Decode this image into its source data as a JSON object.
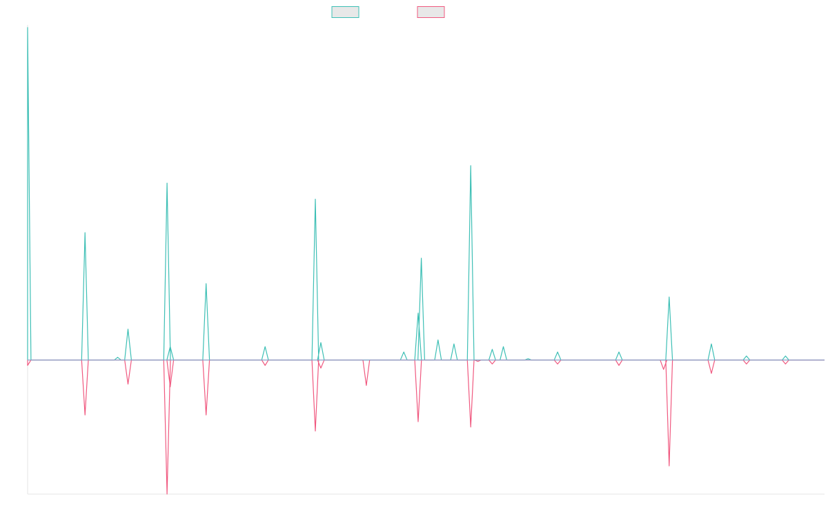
{
  "chart_data": {
    "type": "line",
    "title": "",
    "xlabel": "",
    "ylabel": "",
    "xlim": [
      0,
      100
    ],
    "ylim": [
      -1,
      2.5
    ],
    "grid": false,
    "legend": "top-center",
    "baseline_color": "#8aa0c8",
    "axis_color": "#e6e6e6",
    "series": [
      {
        "color": "#3dbfb5",
        "fill": "#e8e8e8",
        "peaks": [
          {
            "x": 0.0,
            "y": 2.48
          },
          {
            "x": 7.2,
            "y": 0.95
          },
          {
            "x": 11.3,
            "y": 0.02
          },
          {
            "x": 12.6,
            "y": 0.23
          },
          {
            "x": 17.5,
            "y": 1.32
          },
          {
            "x": 17.9,
            "y": 0.1
          },
          {
            "x": 22.4,
            "y": 0.57
          },
          {
            "x": 29.8,
            "y": 0.1
          },
          {
            "x": 36.1,
            "y": 1.2
          },
          {
            "x": 36.8,
            "y": 0.13
          },
          {
            "x": 47.2,
            "y": 0.06
          },
          {
            "x": 49.0,
            "y": 0.35
          },
          {
            "x": 49.4,
            "y": 0.76
          },
          {
            "x": 51.5,
            "y": 0.15
          },
          {
            "x": 53.5,
            "y": 0.12
          },
          {
            "x": 55.6,
            "y": 1.45
          },
          {
            "x": 58.3,
            "y": 0.08
          },
          {
            "x": 59.7,
            "y": 0.1
          },
          {
            "x": 62.8,
            "y": 0.01
          },
          {
            "x": 66.5,
            "y": 0.06
          },
          {
            "x": 74.2,
            "y": 0.06
          },
          {
            "x": 80.5,
            "y": 0.47
          },
          {
            "x": 85.8,
            "y": 0.12
          },
          {
            "x": 90.2,
            "y": 0.03
          },
          {
            "x": 95.1,
            "y": 0.03
          }
        ]
      },
      {
        "color": "#f0587f",
        "fill": "#e8e8e8",
        "peaks": [
          {
            "x": 0.0,
            "y": -0.04
          },
          {
            "x": 7.2,
            "y": -0.41
          },
          {
            "x": 12.6,
            "y": -0.18
          },
          {
            "x": 17.5,
            "y": -1.0
          },
          {
            "x": 17.9,
            "y": -0.2
          },
          {
            "x": 22.4,
            "y": -0.41
          },
          {
            "x": 29.8,
            "y": -0.04
          },
          {
            "x": 36.1,
            "y": -0.53
          },
          {
            "x": 36.8,
            "y": -0.06
          },
          {
            "x": 42.5,
            "y": -0.19
          },
          {
            "x": 49.0,
            "y": -0.46
          },
          {
            "x": 55.6,
            "y": -0.5
          },
          {
            "x": 56.5,
            "y": -0.01
          },
          {
            "x": 58.3,
            "y": -0.03
          },
          {
            "x": 66.5,
            "y": -0.03
          },
          {
            "x": 74.2,
            "y": -0.04
          },
          {
            "x": 79.8,
            "y": -0.07
          },
          {
            "x": 80.5,
            "y": -0.79
          },
          {
            "x": 85.8,
            "y": -0.1
          },
          {
            "x": 90.2,
            "y": -0.03
          },
          {
            "x": 95.1,
            "y": -0.03
          }
        ]
      }
    ]
  }
}
